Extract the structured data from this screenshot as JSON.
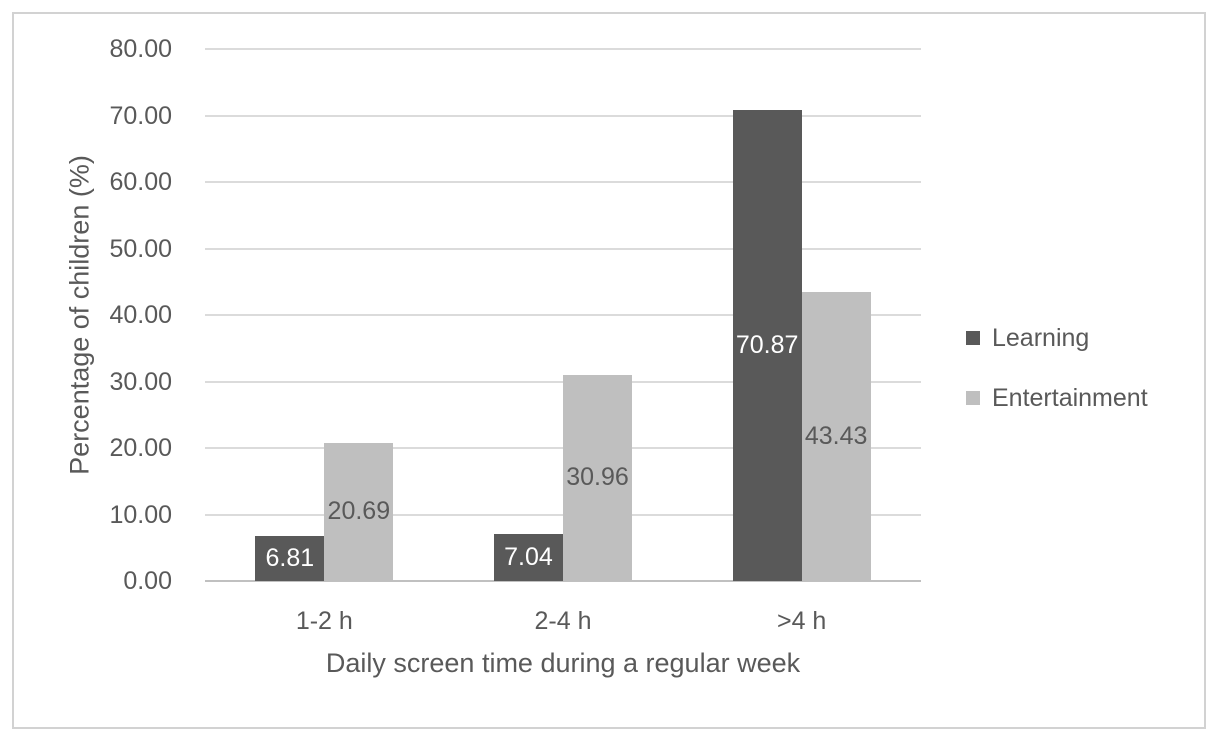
{
  "chart_data": {
    "type": "bar",
    "title": "",
    "categories": [
      "1-2 h",
      "2-4 h",
      ">4 h"
    ],
    "series": [
      {
        "name": "Learning",
        "color": "#595959",
        "label_color": "#FFFFFF",
        "values": [
          6.81,
          7.04,
          70.87
        ],
        "labels": [
          "6.81",
          "7.04",
          "70.87"
        ]
      },
      {
        "name": "Entertainment",
        "color": "#BFBFBF",
        "label_color": "#595959",
        "values": [
          20.69,
          30.96,
          43.43
        ],
        "labels": [
          "20.69",
          "30.96",
          "43.43"
        ]
      }
    ],
    "xlabel": "Daily screen time during a regular week",
    "ylabel": "Percentage of children (%)",
    "ylim": [
      0,
      80
    ],
    "yticks": [
      "0.00",
      "10.00",
      "20.00",
      "30.00",
      "40.00",
      "50.00",
      "60.00",
      "70.00",
      "80.00"
    ],
    "grid": true,
    "legend_position": "right"
  },
  "colors": {
    "text": "#595959",
    "gridline": "#DBDBDB",
    "axis_line": "#C0C0C0",
    "frame_border": "#D2D2D2",
    "background": "#FFFFFF"
  }
}
